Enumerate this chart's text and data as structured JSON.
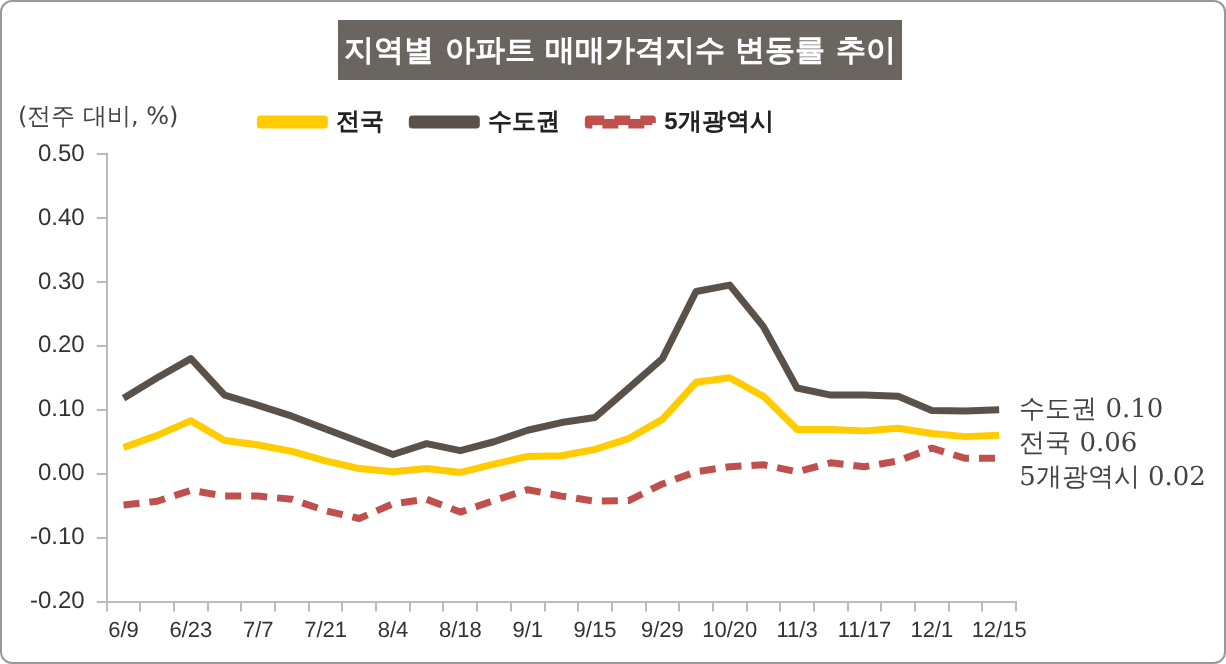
{
  "chart_data": {
    "type": "line",
    "title": "지역별 아파트 매매가격지수 변동률 추이",
    "ylabel": "(전주 대비, %)",
    "categories": [
      "6/9",
      null,
      "6/23",
      null,
      "7/7",
      null,
      "7/21",
      null,
      "8/4",
      null,
      "8/18",
      null,
      "9/1",
      null,
      "9/15",
      null,
      "9/29",
      null,
      "10/20",
      null,
      "11/3",
      null,
      "11/17",
      null,
      "12/1",
      null,
      "12/15"
    ],
    "series": [
      {
        "name": "전국",
        "color": "#ffcc00",
        "line_style": "solid",
        "values": [
          0.041,
          0.06,
          0.083,
          0.052,
          0.045,
          0.035,
          0.02,
          0.008,
          0.003,
          0.008,
          0.002,
          0.015,
          0.027,
          0.028,
          0.038,
          0.055,
          0.085,
          0.143,
          0.15,
          0.121,
          0.069,
          0.069,
          0.067,
          0.071,
          0.063,
          0.058,
          0.06
        ]
      },
      {
        "name": "수도권",
        "color": "#5a5148",
        "line_style": "solid",
        "values": [
          0.118,
          0.15,
          0.18,
          0.123,
          0.107,
          0.09,
          0.07,
          0.05,
          0.03,
          0.047,
          0.036,
          0.05,
          0.068,
          0.08,
          0.088,
          0.134,
          0.18,
          0.285,
          0.295,
          0.23,
          0.134,
          0.123,
          0.123,
          0.121,
          0.099,
          0.098,
          0.1
        ]
      },
      {
        "name": "5개광역시",
        "color": "#c0504d",
        "line_style": "dashed",
        "values": [
          -0.049,
          -0.043,
          -0.026,
          -0.035,
          -0.035,
          -0.04,
          -0.058,
          -0.07,
          -0.047,
          -0.04,
          -0.06,
          -0.042,
          -0.025,
          -0.035,
          -0.043,
          -0.042,
          -0.016,
          0.003,
          0.011,
          0.014,
          0.003,
          0.017,
          0.011,
          0.02,
          0.04,
          0.024,
          0.024
        ]
      }
    ],
    "ylim": [
      -0.2,
      0.5
    ],
    "yticks": [
      {
        "value": -0.2,
        "label": "-0.20"
      },
      {
        "value": -0.1,
        "label": "-0.10"
      },
      {
        "value": 0,
        "label": "0.00"
      },
      {
        "value": 0.1,
        "label": "0.10"
      },
      {
        "value": 0.2,
        "label": "0.20"
      },
      {
        "value": 0.3,
        "label": "0.30"
      },
      {
        "value": 0.4,
        "label": "0.40"
      },
      {
        "value": 0.5,
        "label": "0.50"
      }
    ],
    "grid": false,
    "legend": "top",
    "marker": "none",
    "annotations": [
      {
        "text": "수도권 0.10",
        "x": "12/15",
        "y": 0.1
      },
      {
        "text": "전국 0.06",
        "x": "12/15",
        "y": 0.06
      },
      {
        "text": "5개광역시 0.02",
        "x": "12/15",
        "y": 0.02
      }
    ]
  }
}
